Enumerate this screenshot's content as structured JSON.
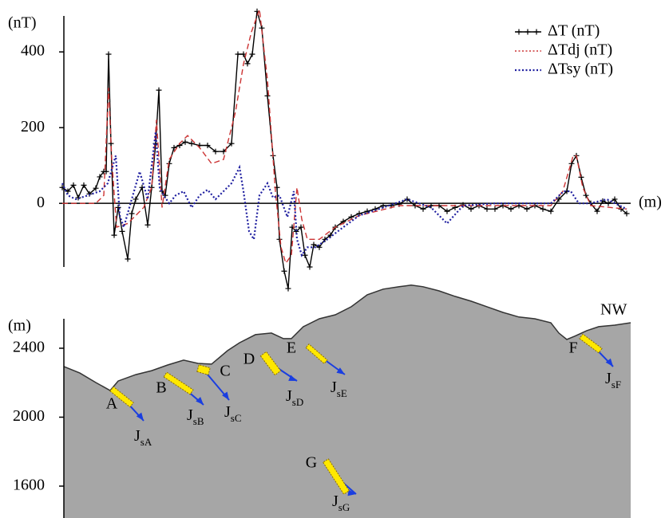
{
  "chart_data": [
    {
      "type": "line",
      "y_label": "(nT)",
      "x_label": "(m)",
      "xlim": [
        -5,
        710
      ],
      "ylim": [
        -168,
        495
      ],
      "yticks": [
        0,
        200,
        400
      ],
      "series": [
        {
          "name": "ΔT (nT)",
          "color": "#000000",
          "style": "solid-plus",
          "x": [
            -2,
            5,
            12,
            18,
            25,
            32,
            40,
            45,
            50,
            53,
            56,
            59,
            63,
            68,
            73,
            80,
            85,
            90,
            98,
            105,
            110,
            115,
            119,
            123,
            127,
            132,
            138,
            145,
            152,
            160,
            170,
            180,
            190,
            200,
            210,
            218,
            225,
            230,
            236,
            242,
            248,
            255,
            262,
            267,
            270,
            276,
            281,
            286,
            291,
            297,
            302,
            308,
            313,
            320,
            327,
            334,
            340,
            350,
            360,
            370,
            380,
            390,
            400,
            410,
            420,
            430,
            440,
            450,
            460,
            470,
            480,
            490,
            500,
            510,
            520,
            530,
            540,
            550,
            560,
            570,
            580,
            590,
            600,
            610,
            620,
            630,
            636,
            642,
            648,
            654,
            660,
            668,
            675,
            682,
            690,
            698,
            705
          ],
          "values": [
            42,
            32,
            48,
            15,
            48,
            25,
            40,
            70,
            84,
            84,
            394,
            158,
            -84,
            -11,
            -74,
            -147,
            -27,
            11,
            42,
            -57,
            42,
            158,
            299,
            32,
            21,
            105,
            147,
            153,
            162,
            158,
            153,
            153,
            137,
            137,
            158,
            394,
            394,
            369,
            394,
            507,
            463,
            284,
            126,
            42,
            -95,
            -179,
            -225,
            -63,
            -74,
            -63,
            -137,
            -168,
            -109,
            -116,
            -95,
            -84,
            -63,
            -48,
            -36,
            -27,
            -21,
            -15,
            -6,
            -6,
            -2,
            11,
            -6,
            -15,
            -6,
            -6,
            -21,
            -11,
            -4,
            -15,
            -6,
            -15,
            -15,
            -6,
            -15,
            -6,
            -15,
            -6,
            -15,
            -21,
            11,
            32,
            105,
            126,
            69,
            21,
            0,
            -21,
            6,
            0,
            11,
            -15,
            -27
          ]
        },
        {
          "name": "ΔTdj (nT)",
          "color": "#cc3333",
          "style": "dashed",
          "x": [
            -2,
            40,
            50,
            56,
            60,
            66,
            80,
            100,
            110,
            116,
            123,
            132,
            145,
            155,
            170,
            185,
            200,
            215,
            225,
            235,
            245,
            255,
            265,
            272,
            278,
            285,
            292,
            298,
            305,
            320,
            340,
            370,
            420,
            470,
            520,
            570,
            610,
            625,
            638,
            642,
            650,
            660,
            705
          ],
          "values": [
            0,
            0,
            21,
            305,
            116,
            -63,
            -53,
            -11,
            42,
            221,
            -11,
            116,
            158,
            179,
            147,
            105,
            116,
            242,
            368,
            453,
            512,
            326,
            32,
            -116,
            -158,
            -137,
            42,
            -42,
            -95,
            -95,
            -63,
            -32,
            -6,
            -6,
            -6,
            -6,
            -6,
            32,
            126,
            126,
            42,
            -6,
            -15
          ]
        },
        {
          "name": "ΔTsy (nT)",
          "color": "#1f1fa0",
          "style": "dotted",
          "x": [
            -2,
            5,
            15,
            30,
            45,
            55,
            65,
            70,
            75,
            85,
            95,
            105,
            115,
            120,
            125,
            132,
            140,
            150,
            160,
            170,
            180,
            190,
            200,
            210,
            220,
            225,
            232,
            238,
            245,
            255,
            262,
            270,
            280,
            288,
            292,
            298,
            305,
            315,
            330,
            350,
            370,
            400,
            430,
            460,
            480,
            500,
            540,
            580,
            610,
            626,
            635,
            645,
            660,
            680,
            705
          ],
          "values": [
            53,
            21,
            11,
            21,
            32,
            53,
            126,
            -32,
            -63,
            11,
            84,
            11,
            189,
            42,
            21,
            0,
            21,
            32,
            -11,
            21,
            36,
            11,
            32,
            53,
            95,
            32,
            -74,
            -95,
            21,
            53,
            15,
            21,
            -36,
            32,
            -95,
            -137,
            -116,
            -116,
            -95,
            -63,
            -32,
            -11,
            11,
            -11,
            -53,
            -6,
            0,
            0,
            0,
            32,
            32,
            0,
            0,
            11,
            -15
          ]
        }
      ]
    },
    {
      "type": "area",
      "y_label": "(m)",
      "color": "#a6a6a6",
      "xlim": [
        -5,
        710
      ],
      "ylim": [
        1415,
        2571
      ],
      "yticks": [
        1600,
        2000,
        2400
      ],
      "x": [
        0,
        20,
        40,
        58,
        68,
        90,
        110,
        130,
        150,
        168,
        185,
        205,
        220,
        240,
        260,
        275,
        285,
        300,
        320,
        340,
        360,
        380,
        400,
        420,
        435,
        450,
        470,
        490,
        510,
        530,
        550,
        570,
        590,
        610,
        620,
        630,
        640,
        655,
        670,
        690,
        710
      ],
      "values": [
        2294,
        2256,
        2201,
        2155,
        2210,
        2247,
        2270,
        2303,
        2331,
        2312,
        2308,
        2386,
        2432,
        2479,
        2488,
        2456,
        2456,
        2525,
        2571,
        2594,
        2641,
        2710,
        2743,
        2757,
        2766,
        2757,
        2733,
        2701,
        2673,
        2641,
        2608,
        2581,
        2571,
        2548,
        2488,
        2451,
        2470,
        2502,
        2525,
        2534,
        2548
      ],
      "annotation": "NW",
      "bodies": [
        {
          "label": "A",
          "symbol": "J",
          "subscript": "sA"
        },
        {
          "label": "B",
          "symbol": "J",
          "subscript": "sB"
        },
        {
          "label": "C",
          "symbol": "J",
          "subscript": "sC"
        },
        {
          "label": "D",
          "symbol": "J",
          "subscript": "sD"
        },
        {
          "label": "E",
          "symbol": "J",
          "subscript": "sE"
        },
        {
          "label": "F",
          "symbol": "J",
          "subscript": "sF"
        },
        {
          "label": "G",
          "symbol": "J",
          "subscript": "sG"
        }
      ]
    }
  ]
}
